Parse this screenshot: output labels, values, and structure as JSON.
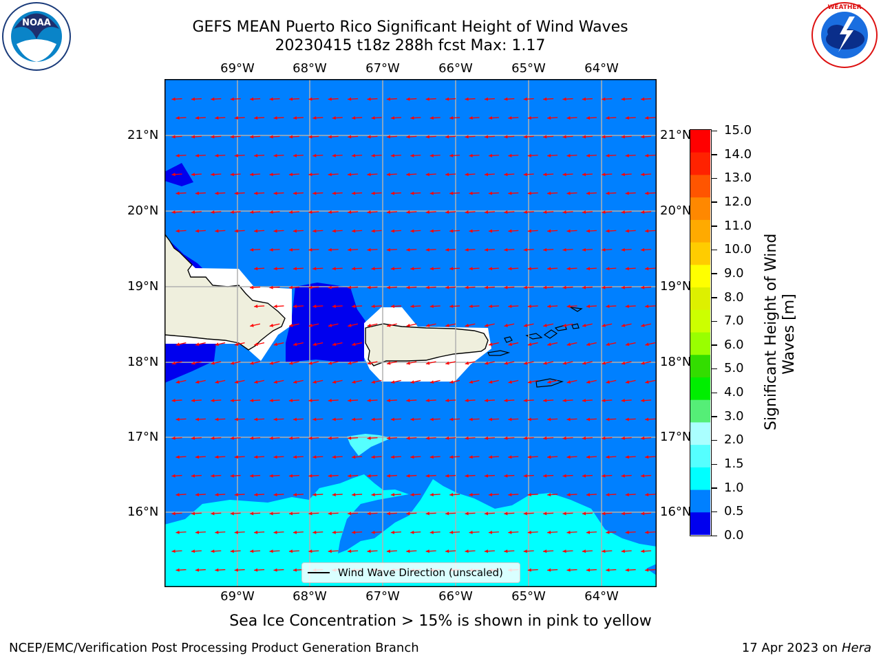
{
  "header": {
    "title_line1": "GEFS MEAN Puerto Rico Significant Height of Wind Waves",
    "title_line2": "20230415 t18z 288h fcst   Max: 1.17"
  },
  "logos": {
    "noaa_text": "NOAA",
    "noaa_ring": "NATIONAL OCEANIC AND ATMOSPHERIC ADMINISTRATION · U.S. DEPARTMENT OF COMMERCE",
    "nws_ring": "NATIONAL WEATHER SERVICE"
  },
  "map": {
    "x_ticks": [
      "69°W",
      "68°W",
      "67°W",
      "66°W",
      "65°W",
      "64°W"
    ],
    "y_ticks": [
      "21°N",
      "20°N",
      "19°N",
      "18°N",
      "17°N",
      "16°N"
    ],
    "legend_label": "Wind Wave Direction (unscaled)",
    "colors": {
      "ocean_0_5_1_0": "#0080ff",
      "ocean_0_0_0_5": "#0000ee",
      "ocean_1_0_1_5": "#00ffff",
      "ocean_1_5_2_0": "#55ffff",
      "land": "#efefdd",
      "arrows": "#ff0000",
      "grid": "#b0b0b0"
    }
  },
  "colorbar": {
    "label_line1": "Significant Height of Wind",
    "label_line2": "Waves [m]",
    "ticks": [
      "15.0",
      "14.0",
      "13.0",
      "12.0",
      "11.0",
      "10.0",
      "9.0",
      "8.0",
      "7.0",
      "6.0",
      "5.0",
      "4.0",
      "3.0",
      "2.0",
      "1.5",
      "1.0",
      "0.5",
      "0.0"
    ],
    "colors": [
      "#ff0000",
      "#ff2200",
      "#ff5500",
      "#ff8800",
      "#ffaa00",
      "#ffcc00",
      "#ffff00",
      "#ddf000",
      "#ccff00",
      "#99ff00",
      "#33dd00",
      "#00ee00",
      "#55ee77",
      "#aaffff",
      "#55ffff",
      "#00ffff",
      "#0080ff",
      "#0000ee"
    ]
  },
  "footer": {
    "note": "Sea Ice Concentration > 15% is shown in pink to yellow",
    "left": "NCEP/EMC/Verification Post Processing Product Generation Branch",
    "right_prefix": "17 Apr 2023 on ",
    "right_machine": "Hera"
  }
}
